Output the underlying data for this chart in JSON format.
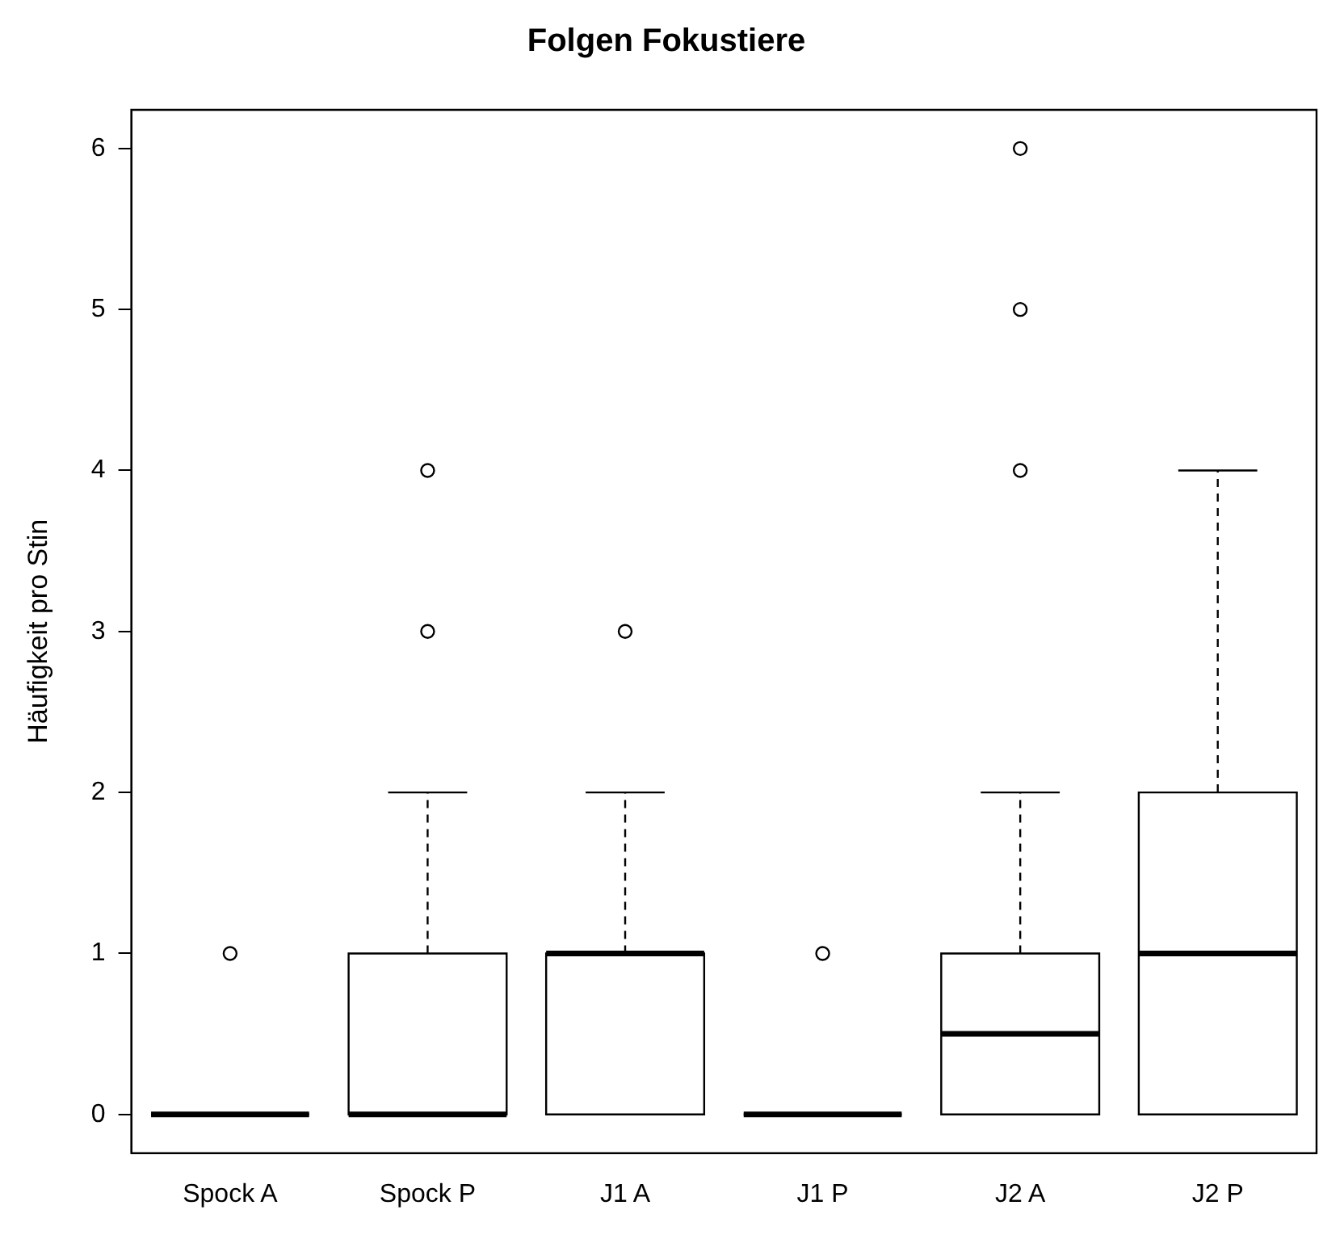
{
  "chart_data": {
    "type": "box",
    "title": "Folgen Fokustiere",
    "ylabel": "Häufigkeit pro Stin",
    "categories": [
      "Spock A",
      "Spock P",
      "J1 A",
      "J1 P",
      "J2 A",
      "J2 P"
    ],
    "boxes": [
      {
        "low": 0,
        "q1": 0,
        "median": 0,
        "q3": 0,
        "high": 0,
        "outliers": [
          1
        ]
      },
      {
        "low": 0,
        "q1": 0,
        "median": 0,
        "q3": 1,
        "high": 2,
        "outliers": [
          3,
          4
        ]
      },
      {
        "low": 0,
        "q1": 0,
        "median": 1,
        "q3": 1,
        "high": 2,
        "outliers": [
          3
        ]
      },
      {
        "low": 0,
        "q1": 0,
        "median": 0,
        "q3": 0,
        "high": 0,
        "outliers": [
          1
        ]
      },
      {
        "low": 0,
        "q1": 0,
        "median": 0.5,
        "q3": 1,
        "high": 2,
        "outliers": [
          4,
          5,
          6
        ]
      },
      {
        "low": 0,
        "q1": 0,
        "median": 1,
        "q3": 2,
        "high": 4
      }
    ],
    "ylim": [
      -0.24,
      6.24
    ],
    "yticks": [
      0,
      1,
      2,
      3,
      4,
      5,
      6
    ],
    "grid": false,
    "legend": false,
    "marker": "circle"
  }
}
